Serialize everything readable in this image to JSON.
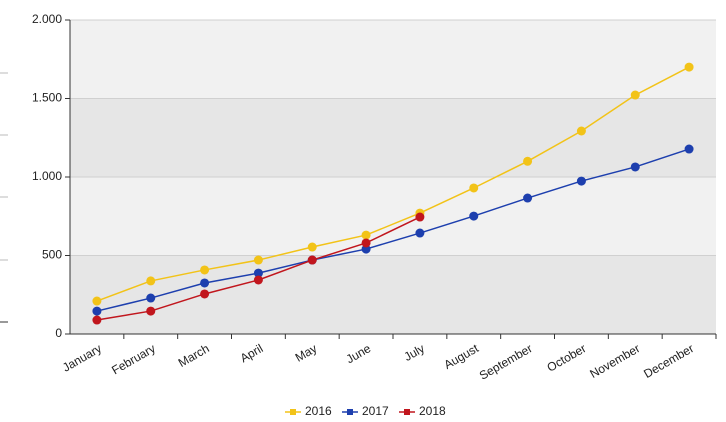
{
  "chart_data": {
    "type": "line",
    "categories": [
      "January",
      "February",
      "March",
      "April",
      "May",
      "June",
      "July",
      "August",
      "September",
      "October",
      "November",
      "December"
    ],
    "series": [
      {
        "name": "2016",
        "color": "#f2c318",
        "values": [
          210,
          338,
          408,
          471,
          554,
          630,
          770,
          930,
          1100,
          1293,
          1522,
          1700
        ]
      },
      {
        "name": "2017",
        "color": "#1d3fae",
        "values": [
          146,
          229,
          325,
          388,
          471,
          541,
          643,
          751,
          866,
          974,
          1064,
          1178
        ]
      },
      {
        "name": "2018",
        "color": "#c1161d",
        "values": [
          89,
          146,
          255,
          344,
          471,
          580,
          745,
          null,
          null,
          null,
          null,
          null
        ]
      }
    ],
    "ylim": [
      0,
      2000
    ],
    "yticks": [
      0,
      500,
      {
        "value": 1000,
        "label": "1.000"
      },
      {
        "value": 1500,
        "label": "1.500"
      },
      {
        "value": 2000,
        "label": "2.000"
      }
    ],
    "grid": true,
    "legend": "bottom"
  }
}
